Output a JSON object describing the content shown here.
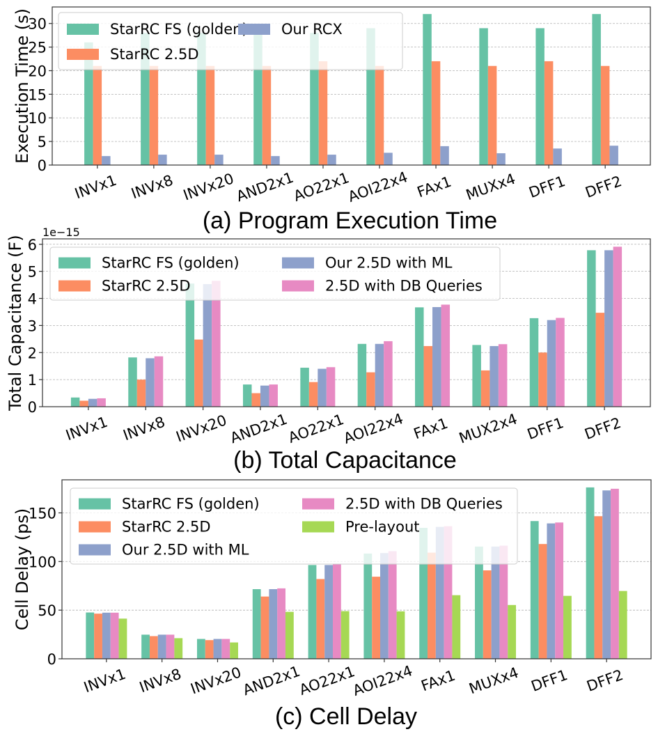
{
  "colors": {
    "golden": "#66c2a5",
    "starrc25d": "#fc8d62",
    "ml": "#8da0cb",
    "db": "#e78ac3",
    "prelayout": "#a6d854"
  },
  "chart_data": [
    {
      "type": "bar",
      "caption": "(a) Program Execution Time",
      "title": "",
      "xlabel": "",
      "ylabel": "Execution Time (s)",
      "ylim": [
        0,
        33.5
      ],
      "yticks": [
        0,
        5,
        10,
        15,
        20,
        25,
        30
      ],
      "grid": true,
      "legend_position": "top-left",
      "legend_columns": 2,
      "categories": [
        "INVx1",
        "INVx8",
        "INVx20",
        "AND2x1",
        "AO22x1",
        "AOI22x4",
        "FAx1",
        "MUXx4",
        "DFF1",
        "DFF2"
      ],
      "series": [
        {
          "name": "StarRC FS (golden)",
          "color_key": "golden",
          "values": [
            26,
            28,
            28,
            28,
            28,
            29,
            32,
            29,
            29,
            32
          ]
        },
        {
          "name": "StarRC 2.5D",
          "color_key": "starrc25d",
          "values": [
            21,
            21,
            21,
            21,
            22,
            21,
            22,
            21,
            22,
            21
          ]
        },
        {
          "name": "Our RCX",
          "color_key": "ml",
          "values": [
            1.9,
            2.2,
            2.2,
            1.9,
            2.2,
            2.6,
            4.0,
            2.5,
            3.5,
            4.1
          ]
        }
      ]
    },
    {
      "type": "bar",
      "caption": "(b) Total Capacitance",
      "title": "",
      "xlabel": "",
      "ylabel": "Total Capacitance (F)",
      "offset_label": "1e−15",
      "ylim": [
        0,
        6.2
      ],
      "yticks": [
        0,
        1,
        2,
        3,
        4,
        5,
        6
      ],
      "grid": true,
      "legend_position": "top-left",
      "legend_columns": 2,
      "categories": [
        "INVx1",
        "INVx8",
        "INVx20",
        "AND2x1",
        "AO22x1",
        "AOI22x4",
        "FAx1",
        "MUX2x4",
        "DFF1",
        "DFF2"
      ],
      "series": [
        {
          "name": "StarRC FS (golden)",
          "color_key": "golden",
          "values": [
            0.34,
            1.82,
            4.55,
            0.82,
            1.44,
            2.32,
            3.67,
            2.28,
            3.27,
            5.78
          ]
        },
        {
          "name": "StarRC 2.5D",
          "color_key": "starrc25d",
          "values": [
            0.22,
            1.0,
            2.48,
            0.5,
            0.91,
            1.27,
            2.24,
            1.34,
            2.0,
            3.47
          ]
        },
        {
          "name": "Our 2.5D with ML",
          "color_key": "ml",
          "values": [
            0.29,
            1.79,
            4.53,
            0.78,
            1.4,
            2.32,
            3.68,
            2.24,
            3.2,
            5.78
          ]
        },
        {
          "name": "2.5D with DB Queries",
          "color_key": "db",
          "values": [
            0.31,
            1.86,
            4.65,
            0.82,
            1.46,
            2.42,
            3.77,
            2.31,
            3.28,
            5.91
          ]
        }
      ]
    },
    {
      "type": "bar",
      "caption": "(c) Cell Delay",
      "title": "",
      "xlabel": "",
      "ylabel": "Cell Delay (ps)",
      "ylim": [
        0,
        184
      ],
      "yticks": [
        0,
        50,
        100,
        150
      ],
      "grid": true,
      "legend_position": "top-left",
      "legend_columns": 2,
      "categories": [
        "INVx1",
        "INVx8",
        "INVx20",
        "AND2x1",
        "AO22x1",
        "AOI22x4",
        "FAx1",
        "MUXx4",
        "DFF1",
        "DFF2"
      ],
      "series": [
        {
          "name": "StarRC FS (golden)",
          "color_key": "golden",
          "values": [
            47.6,
            24.8,
            20.4,
            71.6,
            96.4,
            108.2,
            134.6,
            115.4,
            141.6,
            176.2
          ]
        },
        {
          "name": "StarRC 2.5D",
          "color_key": "starrc25d",
          "values": [
            46.4,
            23.3,
            19.2,
            64.0,
            82.0,
            84.4,
            109.1,
            90.9,
            118.0,
            146.6
          ]
        },
        {
          "name": "Our 2.5D with ML",
          "color_key": "ml",
          "values": [
            47.4,
            24.8,
            20.4,
            71.6,
            96.4,
            108.7,
            135.6,
            115.4,
            139.2,
            173.1
          ]
        },
        {
          "name": "2.5D with DB Queries",
          "color_key": "db",
          "values": [
            47.4,
            24.8,
            20.4,
            72.4,
            97.4,
            110.6,
            136.3,
            116.3,
            140.1,
            174.8
          ]
        },
        {
          "name": "Pre-layout",
          "color_key": "prelayout",
          "values": [
            41.3,
            21.2,
            16.8,
            48.3,
            49.0,
            48.8,
            65.4,
            55.3,
            64.7,
            69.7
          ]
        }
      ]
    }
  ]
}
